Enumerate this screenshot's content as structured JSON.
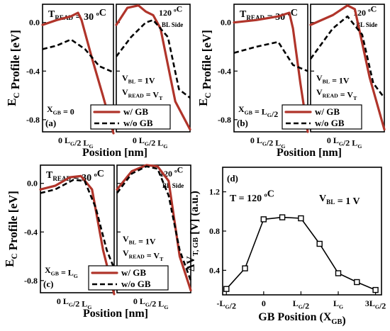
{
  "colors": {
    "with_gb": "#b0342a",
    "without_gb": "#000000"
  },
  "common": {
    "ylabel_main": "E",
    "ylabel_sub": "C",
    "ylabel_rest": " Profile [eV]",
    "xlabel": "Position [nm]",
    "yticks": [
      "0.0",
      "-0.4",
      "-0.8"
    ],
    "xtick_left_a": "0",
    "xtick_left_b": "L",
    "xtick_left_b_sub": "G",
    "xtick_left_b_rest": "/2 L",
    "xtick_left_c_sub": "G",
    "temp_left_main": "T",
    "temp_left_sub": "READ",
    "temp_left_rest": " = 30 ",
    "temp_unit": "C",
    "temp_deg": "o",
    "temp_right": "120 ",
    "bl_side": "BL Side",
    "vbl_main": "V",
    "vbl_sub": "BL",
    "vbl_rest": " = 1V",
    "vread_main": "V",
    "vread_sub": "READ",
    "vread_rest": " = V",
    "vread_sub2": "T",
    "legend_gb": "w/  GB",
    "legend_nogb": "w/o GB"
  },
  "panels": [
    {
      "label": "(a)",
      "xgb_main": "X",
      "xgb_sub": "GB",
      "xgb_rest": " = 0",
      "xgb_sub2": ""
    },
    {
      "label": "(b)",
      "xgb_main": "X",
      "xgb_sub": "GB",
      "xgb_rest": " = L",
      "xgb_sub2": "G",
      "xgb_tail": "/2"
    },
    {
      "label": "(c)",
      "xgb_main": "X",
      "xgb_sub": "GB",
      "xgb_rest": " = L",
      "xgb_sub2": "G",
      "xgb_tail": ""
    }
  ],
  "panel_d": {
    "label": "(d)",
    "temp": "T = 120 ",
    "temp_deg": "o",
    "temp_unit": "C",
    "vbl_main": "V",
    "vbl_sub": "BL",
    "vbl_rest": " = 1 V",
    "ylabel_main": "ΔV",
    "ylabel_sub": "T, GB",
    "ylabel_rest": " [V] (a.u.)",
    "xlabel_main": "GB Position (X",
    "xlabel_sub": "GB",
    "xlabel_rest": ")",
    "yticks": [
      "1.2",
      "0.8",
      "0.4"
    ],
    "xticks": [
      "-L",
      "0",
      "L",
      "L",
      "3L"
    ]
  },
  "chart_data": [
    {
      "type": "line",
      "title": "(a)",
      "ylabel": "EC Profile [eV]",
      "xlabel": "Position [nm]",
      "ylim": [
        -0.9,
        0.15
      ],
      "series": [
        {
          "name": "w/  GB",
          "subplot": "30C",
          "x": [
            0,
            0.2,
            0.4,
            0.5,
            0.55,
            0.7,
            0.85,
            1.0
          ],
          "values": [
            -0.02,
            0.02,
            0.05,
            0.08,
            0.02,
            -0.3,
            -0.6,
            -0.92
          ]
        },
        {
          "name": "w/o GB",
          "subplot": "30C",
          "x": [
            0,
            0.2,
            0.4,
            0.6,
            0.8,
            1.0
          ],
          "values": [
            -0.22,
            -0.19,
            -0.14,
            -0.22,
            -0.36,
            -0.41
          ]
        },
        {
          "name": "w/  GB",
          "subplot": "120C",
          "x": [
            0,
            0.15,
            0.3,
            0.4,
            0.5,
            0.6,
            0.8,
            1.0
          ],
          "values": [
            -0.02,
            0.12,
            0.14,
            0.09,
            0.06,
            -0.05,
            -0.65,
            -0.88
          ]
        },
        {
          "name": "w/o GB",
          "subplot": "120C",
          "x": [
            0,
            0.2,
            0.4,
            0.5,
            0.7,
            0.85,
            1.0
          ],
          "values": [
            -0.28,
            -0.12,
            0.0,
            0.02,
            -0.12,
            -0.55,
            -0.62
          ]
        }
      ]
    },
    {
      "type": "line",
      "title": "(b)",
      "ylim": [
        -0.9,
        0.15
      ],
      "series": [
        {
          "name": "w/  GB",
          "subplot": "30C",
          "x": [
            0,
            0.3,
            0.6,
            0.75,
            0.8,
            0.9,
            1.0
          ],
          "values": [
            0.0,
            0.02,
            0.05,
            0.08,
            -0.05,
            -0.5,
            -0.9
          ]
        },
        {
          "name": "w/o GB",
          "subplot": "30C",
          "x": [
            0,
            0.3,
            0.6,
            0.8,
            1.0
          ],
          "values": [
            -0.25,
            -0.2,
            -0.16,
            -0.35,
            -0.4
          ]
        },
        {
          "name": "w/  GB",
          "subplot": "120C",
          "x": [
            0,
            0.3,
            0.5,
            0.6,
            0.8,
            1.0
          ],
          "values": [
            -0.02,
            0.06,
            0.14,
            0.11,
            -0.45,
            -0.88
          ]
        },
        {
          "name": "w/o GB",
          "subplot": "120C",
          "x": [
            0,
            0.3,
            0.5,
            0.7,
            0.85,
            1.0
          ],
          "values": [
            -0.3,
            -0.05,
            0.05,
            -0.1,
            -0.5,
            -0.62
          ]
        }
      ]
    },
    {
      "type": "line",
      "title": "(c)",
      "ylim": [
        -0.9,
        0.15
      ],
      "series": [
        {
          "name": "w/  GB",
          "subplot": "30C",
          "x": [
            0,
            0.2,
            0.4,
            0.55,
            0.7,
            0.85,
            1.0
          ],
          "values": [
            -0.05,
            -0.02,
            0.05,
            0.06,
            -0.05,
            -0.55,
            -0.92
          ]
        },
        {
          "name": "w/o GB",
          "subplot": "30C",
          "x": [
            0,
            0.2,
            0.45,
            0.6,
            0.75,
            0.9,
            1.0
          ],
          "values": [
            -0.08,
            -0.05,
            0.03,
            0.02,
            -0.2,
            -0.55,
            -0.7
          ]
        },
        {
          "name": "w/  GB",
          "subplot": "120C",
          "x": [
            0,
            0.2,
            0.4,
            0.55,
            0.7,
            0.85,
            1.0
          ],
          "values": [
            -0.05,
            0.1,
            0.15,
            0.14,
            0.02,
            -0.6,
            -0.88
          ]
        },
        {
          "name": "w/o GB",
          "subplot": "120C",
          "x": [
            0,
            0.2,
            0.4,
            0.55,
            0.7,
            0.85,
            1.0
          ],
          "values": [
            -0.08,
            0.08,
            0.14,
            0.12,
            -0.1,
            -0.55,
            -0.8
          ]
        }
      ]
    },
    {
      "type": "line",
      "title": "(d)",
      "xlabel": "GB Position (XGB)",
      "ylabel": "ΔVT, GB [V] (a.u.)",
      "ylim": [
        0.15,
        1.45
      ],
      "xlim": [
        -0.5,
        1.5
      ],
      "series": [
        {
          "name": "",
          "x": [
            -0.5,
            -0.25,
            0,
            0.25,
            0.5,
            0.75,
            1.0,
            1.25,
            1.5
          ],
          "values": [
            0.21,
            0.42,
            0.92,
            0.94,
            0.93,
            0.67,
            0.37,
            0.28,
            0.2
          ]
        }
      ]
    }
  ]
}
